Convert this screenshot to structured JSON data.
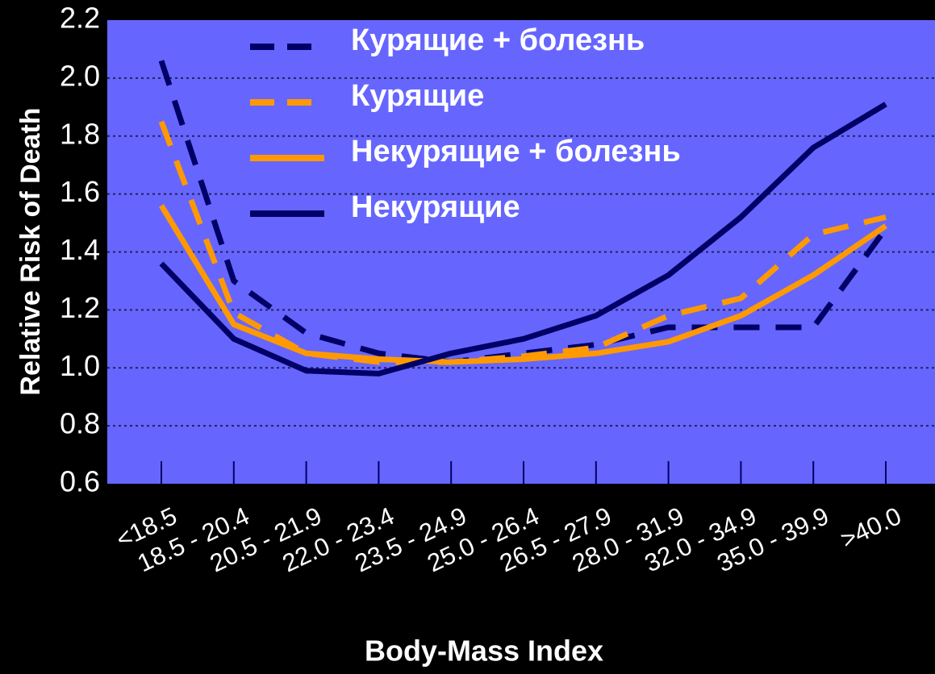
{
  "chart_data": {
    "type": "line",
    "xlabel": "Body-Mass Index",
    "ylabel": "Relative Risk of Death",
    "categories": [
      "<18.5",
      "18.5 - 20.4",
      "20.5 - 21.9",
      "22.0 - 23.4",
      "23.5 - 24.9",
      "25.0 - 26.4",
      "26.5 - 27.9",
      "28.0 - 31.9",
      "32.0 - 34.9",
      "35.0 - 39.9",
      ">40.0"
    ],
    "series": [
      {
        "name": "Курящие + болезнь",
        "color": "#000066",
        "linestyle": "dashed",
        "values": [
          2.06,
          1.3,
          1.12,
          1.05,
          1.02,
          1.05,
          1.08,
          1.14,
          1.14,
          1.14,
          1.48
        ]
      },
      {
        "name": "Курящие",
        "color": "#ff9900",
        "linestyle": "dashed",
        "values": [
          1.85,
          1.19,
          1.05,
          1.02,
          1.02,
          1.04,
          1.07,
          1.18,
          1.24,
          1.46,
          1.52
        ]
      },
      {
        "name": "Некурящие + болезнь",
        "color": "#ff9900",
        "linestyle": "solid",
        "values": [
          1.56,
          1.15,
          1.05,
          1.03,
          1.02,
          1.03,
          1.05,
          1.09,
          1.18,
          1.32,
          1.49
        ]
      },
      {
        "name": "Некурящие",
        "color": "#000066",
        "linestyle": "solid",
        "values": [
          1.36,
          1.1,
          0.99,
          0.98,
          1.05,
          1.1,
          1.18,
          1.32,
          1.52,
          1.76,
          1.91
        ]
      }
    ],
    "ylim": [
      0.6,
      2.2
    ],
    "yticks": [
      {
        "value": 0.6,
        "label": "0.6"
      },
      {
        "value": 0.8,
        "label": "0.8"
      },
      {
        "value": 1.0,
        "label": "1.0"
      },
      {
        "value": 1.2,
        "label": "1.2"
      },
      {
        "value": 1.4,
        "label": "1.4"
      },
      {
        "value": 1.6,
        "label": "1.6"
      },
      {
        "value": 1.8,
        "label": "1.8"
      },
      {
        "value": 2.0,
        "label": "2.0"
      },
      {
        "value": 2.2,
        "label": "2.2"
      }
    ],
    "grid": true,
    "legend": "top"
  }
}
